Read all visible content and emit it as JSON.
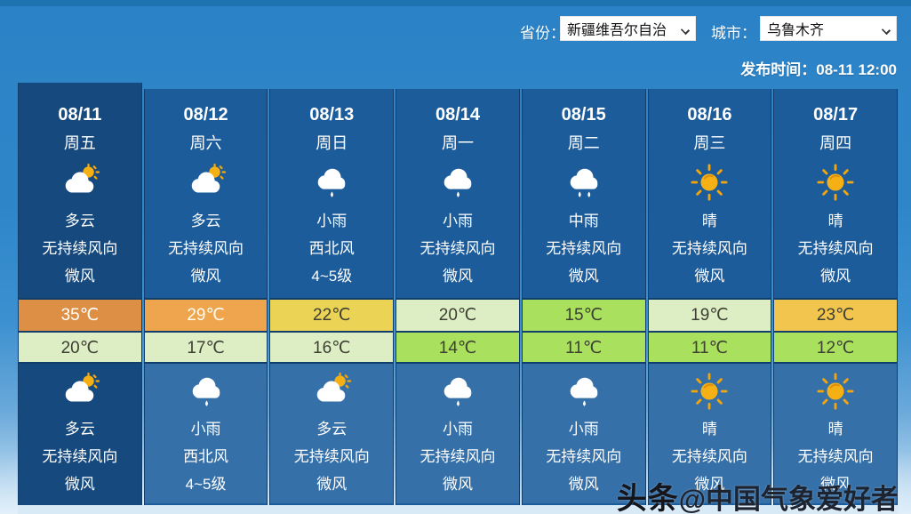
{
  "header": {
    "province_label": "省份：",
    "province_value": "新疆维吾尔自治",
    "city_label": "城市：",
    "city_value": "乌鲁木齐",
    "publish_text": "发布时间：08-11 12:00"
  },
  "watermark": {
    "logo": "头条",
    "text": "@中国气象爱好者"
  },
  "colors": {
    "accent_blue": "#2e86c9",
    "today_column": "#16497d",
    "column": "#1c5c9b",
    "border": "#123e6b",
    "hot_orange": "#dd8f45",
    "warm_orange": "#efa54e",
    "yellow": "#ead355",
    "amber": "#f2c64e",
    "pale_green": "#ddeec4",
    "bright_green": "#a9e05e"
  },
  "columns": [
    {
      "date": "08/11",
      "weekday": "周五",
      "today": true,
      "day": {
        "icon": "partly-cloudy-icon",
        "condition": "多云",
        "wind_dir": "无持续风向",
        "wind_power": "微风"
      },
      "high": {
        "temp": "35℃",
        "bg": "#dd8f45",
        "fg": "#ffffff"
      },
      "low": {
        "temp": "20℃",
        "bg": "#ddeec4",
        "fg": "#3d3f33"
      },
      "night": {
        "icon": "partly-cloudy-icon",
        "condition": "多云",
        "wind_dir": "无持续风向",
        "wind_power": "微风"
      }
    },
    {
      "date": "08/12",
      "weekday": "周六",
      "today": false,
      "day": {
        "icon": "partly-cloudy-icon",
        "condition": "多云",
        "wind_dir": "无持续风向",
        "wind_power": "微风"
      },
      "high": {
        "temp": "29℃",
        "bg": "#efa54e",
        "fg": "#fffdf0"
      },
      "low": {
        "temp": "17℃",
        "bg": "#ddeec4",
        "fg": "#3d3f33"
      },
      "night": {
        "icon": "light-rain-icon",
        "condition": "小雨",
        "wind_dir": "西北风",
        "wind_power": "4~5级"
      }
    },
    {
      "date": "08/13",
      "weekday": "周日",
      "today": false,
      "day": {
        "icon": "light-rain-icon",
        "condition": "小雨",
        "wind_dir": "西北风",
        "wind_power": "4~5级"
      },
      "high": {
        "temp": "22℃",
        "bg": "#ead355",
        "fg": "#3d3f33"
      },
      "low": {
        "temp": "16℃",
        "bg": "#ddeec4",
        "fg": "#3d3f33"
      },
      "night": {
        "icon": "partly-cloudy-icon",
        "condition": "多云",
        "wind_dir": "无持续风向",
        "wind_power": "微风"
      }
    },
    {
      "date": "08/14",
      "weekday": "周一",
      "today": false,
      "day": {
        "icon": "light-rain-icon",
        "condition": "小雨",
        "wind_dir": "无持续风向",
        "wind_power": "微风"
      },
      "high": {
        "temp": "20℃",
        "bg": "#ddeec4",
        "fg": "#3d3f33"
      },
      "low": {
        "temp": "14℃",
        "bg": "#a9e05e",
        "fg": "#3d3f33"
      },
      "night": {
        "icon": "light-rain-icon",
        "condition": "小雨",
        "wind_dir": "无持续风向",
        "wind_power": "微风"
      }
    },
    {
      "date": "08/15",
      "weekday": "周二",
      "today": false,
      "day": {
        "icon": "moderate-rain-icon",
        "condition": "中雨",
        "wind_dir": "无持续风向",
        "wind_power": "微风"
      },
      "high": {
        "temp": "15℃",
        "bg": "#a9e05e",
        "fg": "#3d3f33"
      },
      "low": {
        "temp": "11℃",
        "bg": "#a9e05e",
        "fg": "#3d3f33"
      },
      "night": {
        "icon": "light-rain-icon",
        "condition": "小雨",
        "wind_dir": "无持续风向",
        "wind_power": "微风"
      }
    },
    {
      "date": "08/16",
      "weekday": "周三",
      "today": false,
      "day": {
        "icon": "sunny-icon",
        "condition": "晴",
        "wind_dir": "无持续风向",
        "wind_power": "微风"
      },
      "high": {
        "temp": "19℃",
        "bg": "#ddeec4",
        "fg": "#3d3f33"
      },
      "low": {
        "temp": "11℃",
        "bg": "#a9e05e",
        "fg": "#3d3f33"
      },
      "night": {
        "icon": "sunny-icon",
        "condition": "晴",
        "wind_dir": "无持续风向",
        "wind_power": "微风"
      }
    },
    {
      "date": "08/17",
      "weekday": "周四",
      "today": false,
      "day": {
        "icon": "sunny-icon",
        "condition": "晴",
        "wind_dir": "无持续风向",
        "wind_power": "微风"
      },
      "high": {
        "temp": "23℃",
        "bg": "#f2c64e",
        "fg": "#3d3f33"
      },
      "low": {
        "temp": "12℃",
        "bg": "#a9e05e",
        "fg": "#3d3f33"
      },
      "night": {
        "icon": "sunny-icon",
        "condition": "晴",
        "wind_dir": "无持续风向",
        "wind_power": "微风"
      }
    }
  ]
}
